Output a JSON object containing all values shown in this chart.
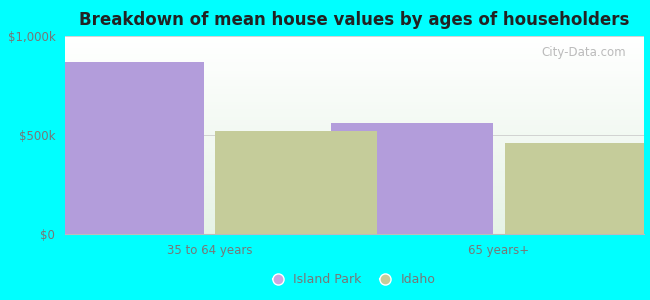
{
  "title": "Breakdown of mean house values by ages of householders",
  "categories": [
    "35 to 64 years",
    "65 years+"
  ],
  "island_park_values": [
    870000,
    560000
  ],
  "idaho_values": [
    520000,
    460000
  ],
  "bar_color_island_park": "#b39ddb",
  "bar_color_idaho": "#c5cc9a",
  "ylim": [
    0,
    1000000
  ],
  "ytick_labels": [
    "$0",
    "$500k",
    "$1,000k"
  ],
  "background_color": "#00ffff",
  "legend_labels": [
    "Island Park",
    "Idaho"
  ],
  "legend_colors": [
    "#c9a8e0",
    "#c5cc9a"
  ],
  "watermark": "City-Data.com",
  "bar_width": 0.28,
  "tick_label_color": "#777777",
  "title_color": "#222222"
}
